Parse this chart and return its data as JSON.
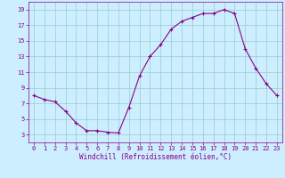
{
  "hours": [
    0,
    1,
    2,
    3,
    4,
    5,
    6,
    7,
    8,
    9,
    10,
    11,
    12,
    13,
    14,
    15,
    16,
    17,
    18,
    19,
    20,
    21,
    22,
    23
  ],
  "values": [
    8.0,
    7.5,
    7.2,
    6.0,
    4.5,
    3.5,
    3.5,
    3.3,
    3.2,
    6.5,
    10.5,
    13.0,
    14.5,
    16.5,
    17.5,
    18.0,
    18.5,
    18.5,
    19.0,
    18.5,
    14.0,
    11.5,
    9.5,
    8.0
  ],
  "line_color": "#880088",
  "marker": "+",
  "bg_color": "#cceeff",
  "grid_color": "#99cccc",
  "xlabel": "Windchill (Refroidissement éolien,°C)",
  "xlim": [
    -0.5,
    23.5
  ],
  "ylim": [
    2.0,
    20.0
  ],
  "yticks": [
    3,
    5,
    7,
    9,
    11,
    13,
    15,
    17,
    19
  ],
  "xticks": [
    0,
    1,
    2,
    3,
    4,
    5,
    6,
    7,
    8,
    9,
    10,
    11,
    12,
    13,
    14,
    15,
    16,
    17,
    18,
    19,
    20,
    21,
    22,
    23
  ],
  "axis_fontsize": 5.5,
  "tick_fontsize": 5.0,
  "line_width": 0.8,
  "marker_size": 2.5,
  "marker_edge_width": 0.8
}
